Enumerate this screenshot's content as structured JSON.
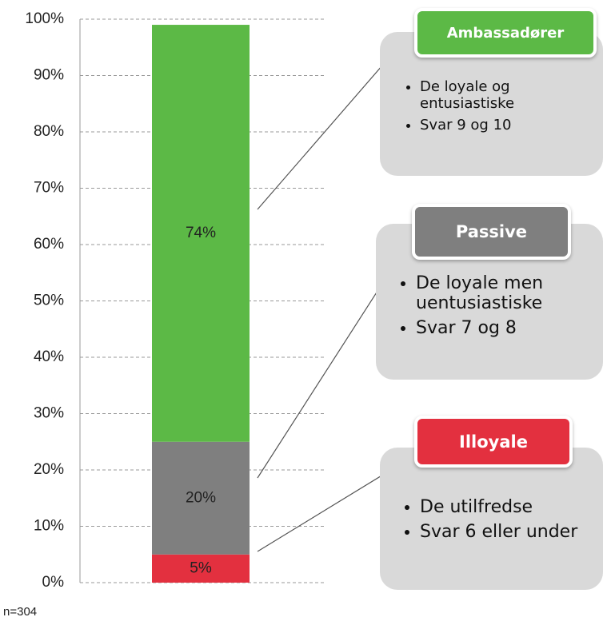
{
  "chart_data": {
    "type": "bar",
    "categories": [
      null
    ],
    "series": [
      {
        "name": "Illoyale",
        "color": "#e3303f",
        "values": [
          5
        ],
        "value_labels": [
          "5%"
        ]
      },
      {
        "name": "Passive",
        "color": "#7f7f7f",
        "values": [
          20
        ],
        "value_labels": [
          "20%"
        ]
      },
      {
        "name": "Ambassadører",
        "color": "#5cb946",
        "values": [
          74
        ],
        "value_labels": [
          "74%"
        ]
      }
    ],
    "ylim": [
      0,
      100
    ],
    "yticks": [
      {
        "value": 0,
        "label": "0%"
      },
      {
        "value": 10,
        "label": "10%"
      },
      {
        "value": 20,
        "label": "20%"
      },
      {
        "value": 30,
        "label": "30%"
      },
      {
        "value": 40,
        "label": "40%"
      },
      {
        "value": 50,
        "label": "50%"
      },
      {
        "value": 60,
        "label": "60%"
      },
      {
        "value": 70,
        "label": "70%"
      },
      {
        "value": 80,
        "label": "80%"
      },
      {
        "value": 90,
        "label": "90%"
      },
      {
        "value": 100,
        "label": "100%"
      }
    ],
    "grid": true,
    "annotations": [
      [
        "De utilfredse",
        "Svar 6 eller under"
      ],
      [
        "De loyale men uentusiastiske",
        "Svar 7 og 8"
      ],
      [
        "De loyale og entusiastiske",
        "Svar 9 og 10"
      ]
    ],
    "note": "n=304"
  }
}
